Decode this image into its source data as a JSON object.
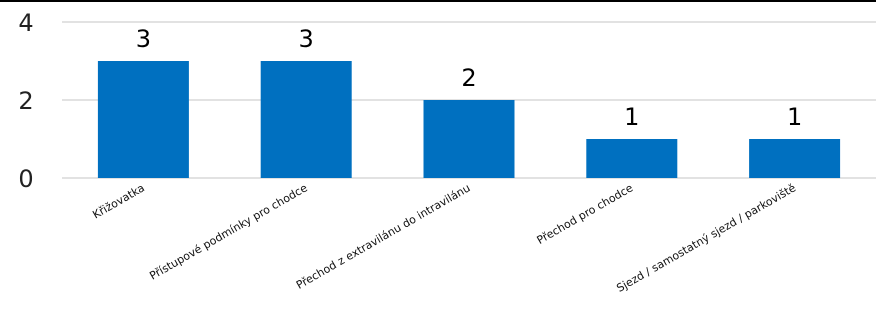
{
  "chart_data": {
    "type": "bar",
    "categories": [
      "Křižovatka",
      "Přístupové podmínky pro chodce",
      "Přechod z extravilánu do intravilánu",
      "Přechod pro chodce",
      "Sjezd / samostatný sjezd / parkoviště"
    ],
    "values": [
      3,
      3,
      2,
      1,
      1
    ],
    "ylim": [
      0,
      4
    ],
    "yticks": [
      0,
      2,
      4
    ],
    "bar_color": "#0070C0",
    "grid": true,
    "title": "",
    "xlabel": "",
    "ylabel": ""
  }
}
